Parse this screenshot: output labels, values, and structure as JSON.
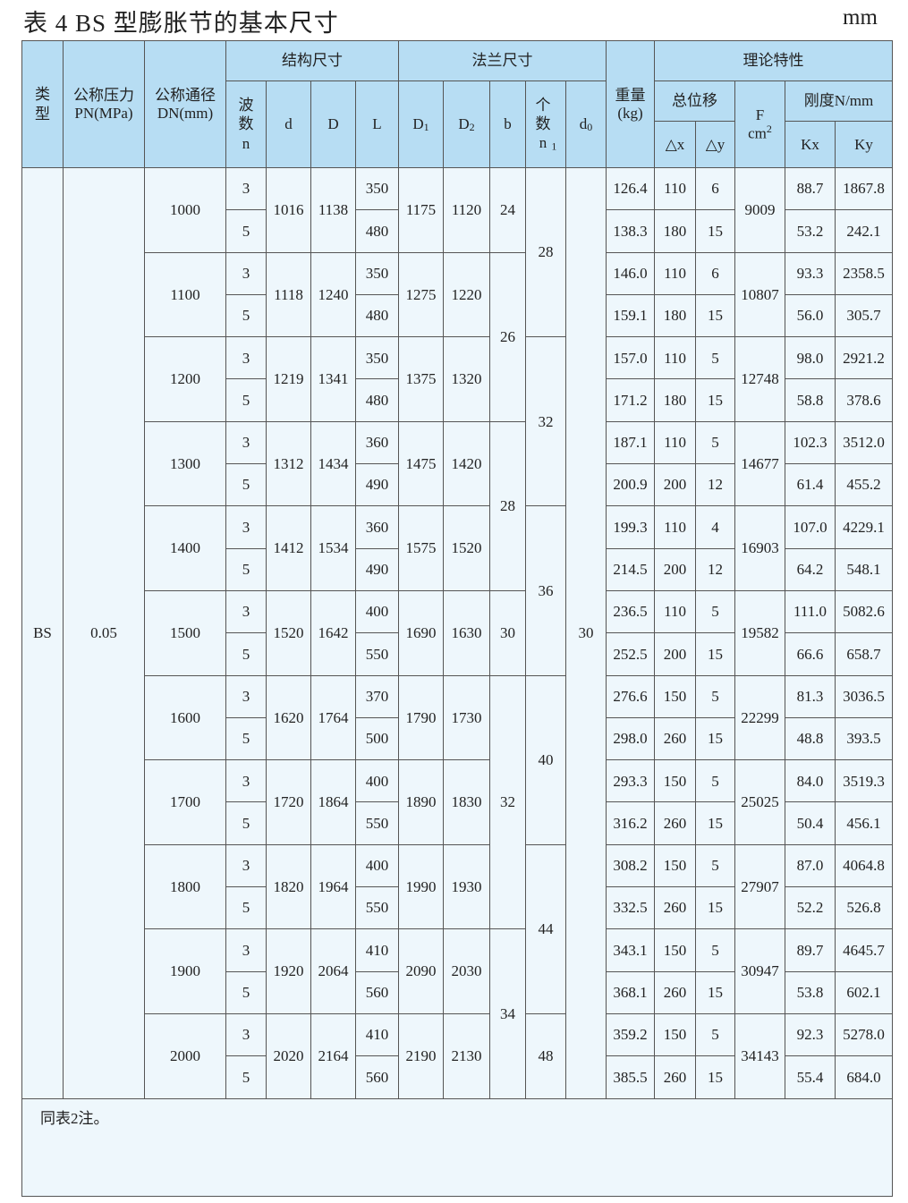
{
  "title": "表 4 BS 型膨胀节的基本尺寸",
  "unit": "mm",
  "header": {
    "type": "类型",
    "pressure": "公称压力PN(MPa)",
    "pressure_l1": "公称压力",
    "pressure_l2": "PN(MPa)",
    "dn_l1": "公称通径",
    "dn_l2": "DN(mm)",
    "struct": "结构尺寸",
    "flange": "法兰尺寸",
    "weight_l1": "重量",
    "weight_l2": "(kg)",
    "theory": "理论特性",
    "waves": "波数n",
    "d": "d",
    "D": "D",
    "L": "L",
    "D1": "D",
    "D1_sub": "1",
    "D2": "D",
    "D2_sub": "2",
    "b": "b",
    "count": "个数n",
    "count_sub": "1",
    "d0": "d",
    "d0_sub": "0",
    "displacement": "总位移",
    "F": "F",
    "F_unit": "cm",
    "F_unit_sup": "2",
    "stiffness": "刚度N/mm",
    "dx": "△x",
    "dy": "△y",
    "kx": "Kx",
    "ky": "Ky"
  },
  "type_value": "BS",
  "pressure_value": "0.05",
  "d0_value": "30",
  "groups": [
    {
      "dn": "1000",
      "d": "1016",
      "D": "1138",
      "D1": "1175",
      "D2": "1120",
      "F": "9009",
      "rows": [
        {
          "n": "3",
          "L": "350",
          "w": "126.4",
          "dx": "110",
          "dy": "6",
          "kx": "88.7",
          "ky": "1867.8"
        },
        {
          "n": "5",
          "L": "480",
          "w": "138.3",
          "dx": "180",
          "dy": "15",
          "kx": "53.2",
          "ky": "242.1"
        }
      ]
    },
    {
      "dn": "1100",
      "d": "1118",
      "D": "1240",
      "D1": "1275",
      "D2": "1220",
      "F": "10807",
      "rows": [
        {
          "n": "3",
          "L": "350",
          "w": "146.0",
          "dx": "110",
          "dy": "6",
          "kx": "93.3",
          "ky": "2358.5"
        },
        {
          "n": "5",
          "L": "480",
          "w": "159.1",
          "dx": "180",
          "dy": "15",
          "kx": "56.0",
          "ky": "305.7"
        }
      ]
    },
    {
      "dn": "1200",
      "d": "1219",
      "D": "1341",
      "D1": "1375",
      "D2": "1320",
      "F": "12748",
      "rows": [
        {
          "n": "3",
          "L": "350",
          "w": "157.0",
          "dx": "110",
          "dy": "5",
          "kx": "98.0",
          "ky": "2921.2"
        },
        {
          "n": "5",
          "L": "480",
          "w": "171.2",
          "dx": "180",
          "dy": "15",
          "kx": "58.8",
          "ky": "378.6"
        }
      ]
    },
    {
      "dn": "1300",
      "d": "1312",
      "D": "1434",
      "D1": "1475",
      "D2": "1420",
      "F": "14677",
      "rows": [
        {
          "n": "3",
          "L": "360",
          "w": "187.1",
          "dx": "110",
          "dy": "5",
          "kx": "102.3",
          "ky": "3512.0"
        },
        {
          "n": "5",
          "L": "490",
          "w": "200.9",
          "dx": "200",
          "dy": "12",
          "kx": "61.4",
          "ky": "455.2"
        }
      ]
    },
    {
      "dn": "1400",
      "d": "1412",
      "D": "1534",
      "D1": "1575",
      "D2": "1520",
      "F": "16903",
      "rows": [
        {
          "n": "3",
          "L": "360",
          "w": "199.3",
          "dx": "110",
          "dy": "4",
          "kx": "107.0",
          "ky": "4229.1"
        },
        {
          "n": "5",
          "L": "490",
          "w": "214.5",
          "dx": "200",
          "dy": "12",
          "kx": "64.2",
          "ky": "548.1"
        }
      ]
    },
    {
      "dn": "1500",
      "d": "1520",
      "D": "1642",
      "D1": "1690",
      "D2": "1630",
      "F": "19582",
      "rows": [
        {
          "n": "3",
          "L": "400",
          "w": "236.5",
          "dx": "110",
          "dy": "5",
          "kx": "111.0",
          "ky": "5082.6"
        },
        {
          "n": "5",
          "L": "550",
          "w": "252.5",
          "dx": "200",
          "dy": "15",
          "kx": "66.6",
          "ky": "658.7"
        }
      ]
    },
    {
      "dn": "1600",
      "d": "1620",
      "D": "1764",
      "D1": "1790",
      "D2": "1730",
      "F": "22299",
      "rows": [
        {
          "n": "3",
          "L": "370",
          "w": "276.6",
          "dx": "150",
          "dy": "5",
          "kx": "81.3",
          "ky": "3036.5"
        },
        {
          "n": "5",
          "L": "500",
          "w": "298.0",
          "dx": "260",
          "dy": "15",
          "kx": "48.8",
          "ky": "393.5"
        }
      ]
    },
    {
      "dn": "1700",
      "d": "1720",
      "D": "1864",
      "D1": "1890",
      "D2": "1830",
      "F": "25025",
      "rows": [
        {
          "n": "3",
          "L": "400",
          "w": "293.3",
          "dx": "150",
          "dy": "5",
          "kx": "84.0",
          "ky": "3519.3"
        },
        {
          "n": "5",
          "L": "550",
          "w": "316.2",
          "dx": "260",
          "dy": "15",
          "kx": "50.4",
          "ky": "456.1"
        }
      ]
    },
    {
      "dn": "1800",
      "d": "1820",
      "D": "1964",
      "D1": "1990",
      "D2": "1930",
      "F": "27907",
      "rows": [
        {
          "n": "3",
          "L": "400",
          "w": "308.2",
          "dx": "150",
          "dy": "5",
          "kx": "87.0",
          "ky": "4064.8"
        },
        {
          "n": "5",
          "L": "550",
          "w": "332.5",
          "dx": "260",
          "dy": "15",
          "kx": "52.2",
          "ky": "526.8"
        }
      ]
    },
    {
      "dn": "1900",
      "d": "1920",
      "D": "2064",
      "D1": "2090",
      "D2": "2030",
      "F": "30947",
      "rows": [
        {
          "n": "3",
          "L": "410",
          "w": "343.1",
          "dx": "150",
          "dy": "5",
          "kx": "89.7",
          "ky": "4645.7"
        },
        {
          "n": "5",
          "L": "560",
          "w": "368.1",
          "dx": "260",
          "dy": "15",
          "kx": "53.8",
          "ky": "602.1"
        }
      ]
    },
    {
      "dn": "2000",
      "d": "2020",
      "D": "2164",
      "D1": "2190",
      "D2": "2130",
      "F": "34143",
      "rows": [
        {
          "n": "3",
          "L": "410",
          "w": "359.2",
          "dx": "150",
          "dy": "5",
          "kx": "92.3",
          "ky": "5278.0"
        },
        {
          "n": "5",
          "L": "560",
          "w": "385.5",
          "dx": "260",
          "dy": "15",
          "kx": "55.4",
          "ky": "684.0"
        }
      ]
    }
  ],
  "b_spans": [
    {
      "value": "24",
      "rows": 2
    },
    {
      "value": "26",
      "rows": 4
    },
    {
      "value": "28",
      "rows": 4
    },
    {
      "value": "30",
      "rows": 2
    },
    {
      "value": "32",
      "rows": 6
    },
    {
      "value": "34",
      "rows": 4
    }
  ],
  "n1_spans": [
    {
      "value": "28",
      "rows": 4
    },
    {
      "value": "32",
      "rows": 4
    },
    {
      "value": "36",
      "rows": 4
    },
    {
      "value": "40",
      "rows": 4
    },
    {
      "value": "44",
      "rows": 4
    },
    {
      "value": "48",
      "rows": 2
    }
  ],
  "note": "同表2注。"
}
